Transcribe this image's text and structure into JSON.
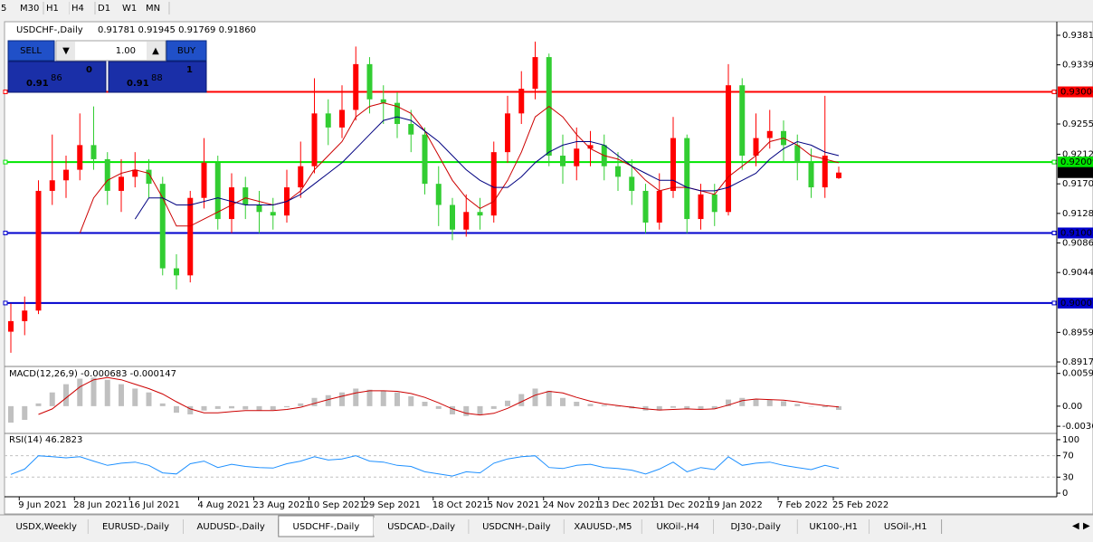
{
  "toolbar": {
    "timeframes": [
      "5",
      "M30",
      "H1",
      "H4",
      "D1",
      "W1",
      "MN"
    ]
  },
  "trade_panel": {
    "sell": "SELL",
    "buy": "BUY",
    "lots": "1.00",
    "bid": {
      "big": "0.91",
      "pips": "86",
      "frac": "0"
    },
    "ask": {
      "big": "0.91",
      "pips": "88",
      "frac": "1"
    }
  },
  "tabs": [
    "USDX,Weekly",
    "EURUSD-,Daily",
    "AUDUSD-,Daily",
    "USDCHF-,Daily",
    "USDCAD-,Daily",
    "USDCNH-,Daily",
    "XAUUSD-,M5",
    "UKOil-,H4",
    "DJ30-,Daily",
    "UK100-,H1",
    "USOil-,H1"
  ],
  "active_tab": 3,
  "chart_data": [
    {
      "type": "candlestick",
      "title": "USDCHF-,Daily",
      "subtitle": "0.91781 0.91945 0.91769 0.91860",
      "categories": [
        null,
        "9 Jun 2021",
        null,
        null,
        null,
        "28 Jun 2021",
        null,
        null,
        null,
        "16 Jul 2021",
        null,
        null,
        null,
        null,
        "4 Aug 2021",
        null,
        null,
        null,
        "23 Aug 2021",
        null,
        null,
        null,
        "10 Sep 2021",
        null,
        null,
        null,
        "29 Sep 2021",
        null,
        null,
        null,
        null,
        "18 Oct 2021",
        null,
        null,
        null,
        "5 Nov 2021",
        null,
        null,
        null,
        "24 Nov 2021",
        null,
        null,
        null,
        "13 Dec 2021",
        null,
        null,
        null,
        "31 Dec 2021",
        null,
        null,
        null,
        "19 Jan 2022",
        null,
        null,
        null,
        null,
        "7 Feb 2022",
        null,
        null,
        null,
        "25 Feb 2022"
      ],
      "open": [
        0.896,
        0.8975,
        0.899,
        0.916,
        0.9175,
        0.919,
        0.9225,
        0.9205,
        0.916,
        0.918,
        0.919,
        0.917,
        0.905,
        0.904,
        0.915,
        0.92,
        0.912,
        0.9165,
        0.914,
        0.913,
        0.9125,
        0.9165,
        0.9195,
        0.927,
        0.925,
        0.9275,
        0.934,
        0.929,
        0.9285,
        0.9255,
        0.924,
        0.917,
        0.914,
        0.9105,
        0.913,
        0.9125,
        0.9215,
        0.927,
        0.9305,
        0.935,
        0.921,
        0.9195,
        0.922,
        0.9225,
        0.9195,
        0.918,
        0.916,
        0.9115,
        0.916,
        0.9235,
        0.912,
        0.9155,
        0.913,
        0.931,
        0.921,
        0.9235,
        0.9245,
        0.9225,
        0.92,
        0.9165,
        0.91781
      ],
      "high": [
        0.9,
        0.901,
        0.9175,
        0.924,
        0.921,
        0.927,
        0.928,
        0.9215,
        0.9205,
        0.9215,
        0.9205,
        0.918,
        0.907,
        0.916,
        0.9235,
        0.921,
        0.9185,
        0.918,
        0.916,
        0.915,
        0.919,
        0.923,
        0.932,
        0.929,
        0.931,
        0.9365,
        0.935,
        0.931,
        0.93,
        0.9275,
        0.925,
        0.9195,
        0.915,
        0.9155,
        0.915,
        0.923,
        0.9295,
        0.933,
        0.9372,
        0.9355,
        0.924,
        0.925,
        0.9245,
        0.924,
        0.9215,
        0.9205,
        0.917,
        0.9185,
        0.9265,
        0.924,
        0.917,
        0.917,
        0.934,
        0.932,
        0.927,
        0.9275,
        0.926,
        0.924,
        0.922,
        0.9295,
        0.91945
      ],
      "low": [
        0.893,
        0.8955,
        0.8985,
        0.914,
        0.915,
        0.9175,
        0.919,
        0.914,
        0.913,
        0.9165,
        0.915,
        0.904,
        0.902,
        0.903,
        0.9135,
        0.9105,
        0.91,
        0.912,
        0.91,
        0.9105,
        0.9115,
        0.915,
        0.9185,
        0.9225,
        0.9235,
        0.926,
        0.927,
        0.9255,
        0.9235,
        0.9215,
        0.9155,
        0.911,
        0.909,
        0.9095,
        0.9105,
        0.9115,
        0.92,
        0.9255,
        0.929,
        0.9195,
        0.917,
        0.9175,
        0.9195,
        0.9175,
        0.916,
        0.914,
        0.91,
        0.9105,
        0.915,
        0.91,
        0.9105,
        0.911,
        0.9125,
        0.919,
        0.9195,
        0.922,
        0.92,
        0.9175,
        0.915,
        0.915,
        0.91769
      ],
      "close": [
        0.8975,
        0.899,
        0.916,
        0.9175,
        0.919,
        0.9225,
        0.9205,
        0.916,
        0.918,
        0.919,
        0.917,
        0.905,
        0.904,
        0.915,
        0.92,
        0.912,
        0.9165,
        0.914,
        0.913,
        0.9125,
        0.9165,
        0.9195,
        0.927,
        0.925,
        0.9275,
        0.934,
        0.929,
        0.9285,
        0.9255,
        0.924,
        0.917,
        0.914,
        0.9105,
        0.913,
        0.9125,
        0.9215,
        0.927,
        0.9305,
        0.935,
        0.921,
        0.9195,
        0.922,
        0.9225,
        0.9195,
        0.918,
        0.916,
        0.9115,
        0.916,
        0.9235,
        0.912,
        0.9155,
        0.913,
        0.931,
        0.921,
        0.9235,
        0.9245,
        0.9225,
        0.92,
        0.9165,
        0.921,
        0.9186
      ],
      "up_color": "#ff0000",
      "down_color": "#32cd32",
      "series": [
        {
          "color": "#cc0000",
          "values": [
            null,
            null,
            null,
            null,
            null,
            0.91,
            0.915,
            0.9175,
            0.9185,
            0.919,
            0.9185,
            0.915,
            0.911,
            0.911,
            0.912,
            0.913,
            0.914,
            0.915,
            0.9145,
            0.914,
            0.9145,
            0.916,
            0.919,
            0.921,
            0.923,
            0.9265,
            0.928,
            0.9285,
            0.928,
            0.927,
            0.9245,
            0.921,
            0.9175,
            0.915,
            0.9135,
            0.9145,
            0.9175,
            0.9215,
            0.9265,
            0.928,
            0.9265,
            0.924,
            0.922,
            0.921,
            0.9205,
            0.9195,
            0.9175,
            0.916,
            0.9165,
            0.9165,
            0.916,
            0.9155,
            0.918,
            0.9195,
            0.921,
            0.923,
            0.9235,
            0.9225,
            0.921,
            0.9205,
            0.92
          ]
        },
        {
          "color": "#000080",
          "values": [
            null,
            null,
            null,
            null,
            null,
            null,
            null,
            null,
            null,
            0.912,
            0.915,
            0.915,
            0.914,
            0.914,
            0.9145,
            0.915,
            0.9145,
            0.914,
            0.914,
            0.914,
            0.9145,
            0.9155,
            0.917,
            0.9185,
            0.92,
            0.922,
            0.924,
            0.926,
            0.9265,
            0.926,
            0.9245,
            0.923,
            0.921,
            0.919,
            0.9175,
            0.9165,
            0.9165,
            0.918,
            0.92,
            0.9215,
            0.9225,
            0.923,
            0.923,
            0.9225,
            0.921,
            0.9195,
            0.9185,
            0.9175,
            0.9175,
            0.9165,
            0.916,
            0.916,
            0.9165,
            0.9175,
            0.9185,
            0.9205,
            0.922,
            0.923,
            0.9225,
            0.9215,
            0.921
          ]
        }
      ],
      "levels": [
        {
          "value": 0.93006,
          "color": "#ff0000"
        },
        {
          "value": 0.92009,
          "color": "#00e600"
        },
        {
          "value": 0.91002,
          "color": "#0000cd"
        },
        {
          "value": 0.90007,
          "color": "#0000cd"
        },
        {
          "value": 0.9186,
          "label": "0.91860",
          "color": "#000000",
          "marker_only": true
        }
      ],
      "ylim": [
        0.89119,
        0.93951
      ],
      "yticks": [
        {
          "value": 0.9381,
          "label": "0.93810"
        },
        {
          "value": 0.9339,
          "label": "0.93390"
        },
        {
          "value": 0.9255,
          "label": "0.92550"
        },
        {
          "value": 0.9212,
          "label": "0.92120"
        },
        {
          "value": 0.917,
          "label": "0.91700"
        },
        {
          "value": 0.9128,
          "label": "0.91280"
        },
        {
          "value": 0.9086,
          "label": "0.90860"
        },
        {
          "value": 0.9044,
          "label": "0.90440"
        },
        {
          "value": 0.8959,
          "label": "0.89590"
        },
        {
          "value": 0.8917,
          "label": "0.89170"
        }
      ]
    },
    {
      "type": "macd",
      "title": "MACD(12,26,9) -0.000683 -0.000147",
      "color": "#c0c0c0",
      "signal_color": "#cc0000",
      "values": [
        -0.003,
        -0.0025,
        0.0005,
        0.0025,
        0.004,
        0.005,
        0.0052,
        0.0048,
        0.004,
        0.0032,
        0.0025,
        0.0005,
        -0.0012,
        -0.0015,
        -0.0008,
        -0.0005,
        -0.0004,
        -0.0006,
        -0.0008,
        -0.0007,
        -0.0002,
        0.0005,
        0.0015,
        0.002,
        0.0025,
        0.0032,
        0.003,
        0.0028,
        0.0025,
        0.0018,
        0.0008,
        -0.0005,
        -0.0015,
        -0.0018,
        -0.0015,
        -0.0005,
        0.001,
        0.0022,
        0.0032,
        0.0028,
        0.0015,
        0.0008,
        0.0004,
        0.0002,
        -0.0001,
        -0.0004,
        -0.0008,
        -0.0008,
        -0.0003,
        -0.0006,
        -0.0006,
        -0.0005,
        0.0012,
        0.0015,
        0.0012,
        0.0012,
        0.0009,
        0.0004,
        0.0,
        -0.0002,
        -0.000683
      ],
      "signal": [
        null,
        null,
        -0.0015,
        -0.0005,
        0.0015,
        0.0035,
        0.0048,
        0.0052,
        0.0048,
        0.004,
        0.0032,
        0.0022,
        0.0008,
        -0.0005,
        -0.0012,
        -0.0012,
        -0.001,
        -0.0008,
        -0.0008,
        -0.0008,
        -0.0006,
        -0.0002,
        0.0005,
        0.0012,
        0.0018,
        0.0024,
        0.0028,
        0.0028,
        0.0027,
        0.0023,
        0.0016,
        0.0006,
        -0.0005,
        -0.0013,
        -0.0016,
        -0.0013,
        -0.0004,
        0.0008,
        0.002,
        0.0027,
        0.0024,
        0.0016,
        0.0009,
        0.0004,
        0.0001,
        -0.0002,
        -0.0005,
        -0.0007,
        -0.0006,
        -0.0005,
        -0.0006,
        -0.0005,
        0.0002,
        0.001,
        0.0013,
        0.0012,
        0.0011,
        0.0008,
        0.0004,
        0.0001,
        -0.000147
      ],
      "ylim": [
        -0.0048,
        0.0069
      ],
      "yticks": [
        0.005963,
        {
          "value": 0,
          "label": "0.00"
        },
        -0.003663
      ]
    },
    {
      "type": "line",
      "title": "RSI(14) 46.2823",
      "color": "#1e90ff",
      "values": [
        35,
        45,
        70,
        68,
        66,
        68,
        60,
        52,
        56,
        58,
        52,
        38,
        36,
        55,
        60,
        48,
        54,
        50,
        48,
        47,
        55,
        60,
        68,
        62,
        64,
        70,
        60,
        58,
        52,
        50,
        40,
        36,
        32,
        40,
        38,
        56,
        64,
        68,
        70,
        48,
        46,
        52,
        54,
        48,
        46,
        43,
        36,
        45,
        58,
        40,
        48,
        44,
        68,
        52,
        56,
        58,
        52,
        48,
        44,
        52,
        46.2823
      ],
      "ylim": [
        -5,
        110
      ],
      "yticks": [
        100,
        70,
        30,
        0
      ],
      "dashed_ticks": [
        70,
        30
      ]
    }
  ]
}
